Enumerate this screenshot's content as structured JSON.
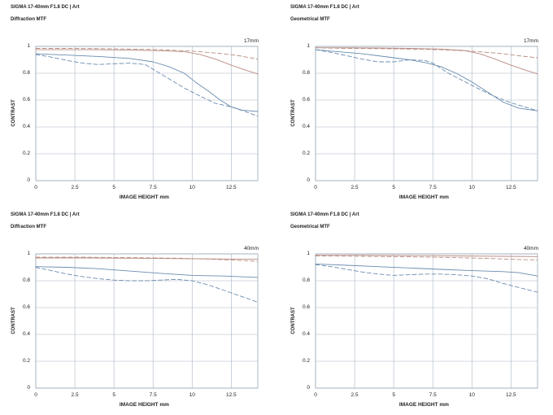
{
  "chart_data": [
    {
      "type": "line",
      "title": "SIGMA 17-40mm F1.8 DC | Art",
      "subtitle": "Diffraction MTF",
      "focal": "17mm",
      "xlabel": "IMAGE HEIGHT  mm",
      "ylabel": "CONTRAST",
      "xlim": [
        0,
        14.2
      ],
      "ylim": [
        0,
        1
      ],
      "xticks": [
        "0",
        "2.5",
        "5",
        "7.5",
        "10",
        "12.5"
      ],
      "xtick_values": [
        0,
        2.5,
        5,
        7.5,
        10,
        12.5
      ],
      "yticks": [
        "0",
        "0.2",
        "0.4",
        "0.6",
        "0.8",
        "1"
      ],
      "ytick_values": [
        0,
        0.2,
        0.4,
        0.6,
        0.8,
        1
      ],
      "grid": true,
      "series": [
        {
          "color": "#b88c82",
          "dash": false,
          "x": [
            0,
            2,
            4,
            6,
            8,
            9.5,
            10.5,
            11.5,
            12.5,
            13.5,
            14.2
          ],
          "y": [
            0.975,
            0.975,
            0.975,
            0.972,
            0.968,
            0.96,
            0.94,
            0.905,
            0.86,
            0.82,
            0.795
          ]
        },
        {
          "color": "#b88c82",
          "dash": true,
          "x": [
            0,
            2,
            4,
            6,
            8,
            10,
            11,
            12,
            13,
            14.2
          ],
          "y": [
            0.985,
            0.985,
            0.983,
            0.98,
            0.975,
            0.965,
            0.955,
            0.945,
            0.93,
            0.905
          ]
        },
        {
          "color": "#6a8caf",
          "dash": false,
          "x": [
            0,
            2,
            4,
            6,
            7.5,
            8.5,
            9.5,
            10.2,
            11,
            11.8,
            12.5,
            13.2,
            14.2
          ],
          "y": [
            0.945,
            0.935,
            0.925,
            0.91,
            0.885,
            0.85,
            0.8,
            0.735,
            0.67,
            0.6,
            0.55,
            0.525,
            0.515
          ]
        },
        {
          "color": "#6a8caf",
          "dash": true,
          "x": [
            0,
            1,
            2,
            3,
            4,
            5,
            6,
            7,
            7.5,
            8.5,
            9.5,
            10.5,
            11.5,
            12.5,
            13.5,
            14.2
          ],
          "y": [
            0.94,
            0.92,
            0.895,
            0.875,
            0.865,
            0.87,
            0.875,
            0.865,
            0.83,
            0.76,
            0.69,
            0.63,
            0.575,
            0.55,
            0.51,
            0.48
          ]
        }
      ]
    },
    {
      "type": "line",
      "title": "SIGMA 17-40mm F1.8 DC | Art",
      "subtitle": "Geometrical MTF",
      "focal": "17mm",
      "xlabel": "IMAGE HEIGHT  mm",
      "ylabel": "CONTRAST",
      "xlim": [
        0,
        14.2
      ],
      "ylim": [
        0,
        1
      ],
      "xticks": [
        "0",
        "2.5",
        "5",
        "7.5",
        "10",
        "12.5"
      ],
      "xtick_values": [
        0,
        2.5,
        5,
        7.5,
        10,
        12.5
      ],
      "yticks": [
        "0",
        "0.2",
        "0.4",
        "0.6",
        "0.8",
        "1"
      ],
      "ytick_values": [
        0,
        0.2,
        0.4,
        0.6,
        0.8,
        1
      ],
      "grid": true,
      "series": [
        {
          "color": "#b88c82",
          "dash": false,
          "x": [
            0,
            2,
            4,
            6,
            8,
            9.5,
            10.5,
            11.5,
            12.5,
            13.5,
            14.2
          ],
          "y": [
            0.99,
            0.99,
            0.988,
            0.985,
            0.98,
            0.97,
            0.945,
            0.905,
            0.86,
            0.82,
            0.795
          ]
        },
        {
          "color": "#b88c82",
          "dash": true,
          "x": [
            0,
            2,
            4,
            6,
            8,
            10,
            11,
            12,
            13,
            14.2
          ],
          "y": [
            0.99,
            0.985,
            0.983,
            0.98,
            0.975,
            0.965,
            0.955,
            0.945,
            0.93,
            0.915
          ]
        },
        {
          "color": "#6a8caf",
          "dash": false,
          "x": [
            0,
            1,
            2,
            3,
            4,
            5,
            6,
            7,
            8,
            9,
            10,
            11,
            12,
            13,
            14.2
          ],
          "y": [
            0.975,
            0.965,
            0.955,
            0.945,
            0.93,
            0.915,
            0.9,
            0.88,
            0.85,
            0.8,
            0.735,
            0.66,
            0.585,
            0.54,
            0.52
          ]
        },
        {
          "color": "#6a8caf",
          "dash": true,
          "x": [
            0,
            1,
            2,
            3,
            4,
            5,
            6,
            7,
            7.5,
            8.5,
            9.5,
            10.5,
            11.5,
            12.5,
            13.5,
            14.2
          ],
          "y": [
            0.975,
            0.955,
            0.93,
            0.905,
            0.885,
            0.885,
            0.9,
            0.895,
            0.875,
            0.8,
            0.74,
            0.68,
            0.625,
            0.58,
            0.545,
            0.52
          ]
        }
      ]
    },
    {
      "type": "line",
      "title": "SIGMA 17-40mm F1.8 DC | Art",
      "subtitle": "Diffraction MTF",
      "focal": "40mm",
      "xlabel": "IMAGE HEIGHT  mm",
      "ylabel": "CONTRAST",
      "xlim": [
        0,
        14.2
      ],
      "ylim": [
        0,
        1
      ],
      "xticks": [
        "0",
        "2.5",
        "5",
        "7.5",
        "10",
        "12.5"
      ],
      "xtick_values": [
        0,
        2.5,
        5,
        7.5,
        10,
        12.5
      ],
      "yticks": [
        "0",
        "0.2",
        "0.4",
        "0.6",
        "0.8",
        "1"
      ],
      "ytick_values": [
        0,
        0.2,
        0.4,
        0.6,
        0.8,
        1
      ],
      "grid": true,
      "series": [
        {
          "color": "#b88c82",
          "dash": false,
          "x": [
            0,
            3,
            6,
            9,
            12,
            14.2
          ],
          "y": [
            0.97,
            0.97,
            0.968,
            0.965,
            0.962,
            0.96
          ]
        },
        {
          "color": "#b88c82",
          "dash": true,
          "x": [
            0,
            3,
            6,
            9,
            11,
            13,
            14.2
          ],
          "y": [
            0.975,
            0.975,
            0.972,
            0.968,
            0.962,
            0.952,
            0.945
          ]
        },
        {
          "color": "#6a8caf",
          "dash": false,
          "x": [
            0,
            2,
            4,
            6,
            8,
            10,
            12,
            14.2
          ],
          "y": [
            0.905,
            0.9,
            0.89,
            0.872,
            0.855,
            0.84,
            0.835,
            0.825
          ]
        },
        {
          "color": "#6a8caf",
          "dash": true,
          "x": [
            0,
            1,
            2,
            3,
            4,
            5,
            6,
            7,
            8,
            9,
            10,
            11,
            12,
            13,
            14.2
          ],
          "y": [
            0.9,
            0.875,
            0.85,
            0.83,
            0.815,
            0.805,
            0.8,
            0.8,
            0.805,
            0.81,
            0.8,
            0.77,
            0.73,
            0.69,
            0.64
          ]
        }
      ]
    },
    {
      "type": "line",
      "title": "SIGMA 17-40mm F1.8 DC | Art",
      "subtitle": "Geometrical MTF",
      "focal": "40mm",
      "xlabel": "IMAGE HEIGHT  mm",
      "ylabel": "CONTRAST",
      "xlim": [
        0,
        14.2
      ],
      "ylim": [
        0,
        1
      ],
      "xticks": [
        "0",
        "2.5",
        "5",
        "7.5",
        "10",
        "12.5"
      ],
      "xtick_values": [
        0,
        2.5,
        5,
        7.5,
        10,
        12.5
      ],
      "yticks": [
        "0",
        "0.2",
        "0.4",
        "0.6",
        "0.8",
        "1"
      ],
      "ytick_values": [
        0,
        0.2,
        0.4,
        0.6,
        0.8,
        1
      ],
      "grid": true,
      "series": [
        {
          "color": "#b88c82",
          "dash": false,
          "x": [
            0,
            3,
            6,
            9,
            12,
            14.2
          ],
          "y": [
            0.99,
            0.99,
            0.988,
            0.985,
            0.982,
            0.98
          ]
        },
        {
          "color": "#b88c82",
          "dash": true,
          "x": [
            0,
            3,
            6,
            9,
            11,
            13,
            14.2
          ],
          "y": [
            0.985,
            0.982,
            0.978,
            0.972,
            0.966,
            0.958,
            0.955
          ]
        },
        {
          "color": "#6a8caf",
          "dash": false,
          "x": [
            0,
            2,
            4,
            6,
            8,
            10,
            12,
            13,
            14.2
          ],
          "y": [
            0.925,
            0.915,
            0.905,
            0.895,
            0.885,
            0.875,
            0.868,
            0.86,
            0.835
          ]
        },
        {
          "color": "#6a8caf",
          "dash": true,
          "x": [
            0,
            1,
            2,
            3,
            4,
            5,
            6,
            7,
            8,
            9,
            10,
            11,
            12,
            13,
            14.2
          ],
          "y": [
            0.92,
            0.905,
            0.885,
            0.865,
            0.85,
            0.84,
            0.845,
            0.85,
            0.85,
            0.845,
            0.835,
            0.815,
            0.78,
            0.75,
            0.715
          ]
        }
      ]
    }
  ]
}
